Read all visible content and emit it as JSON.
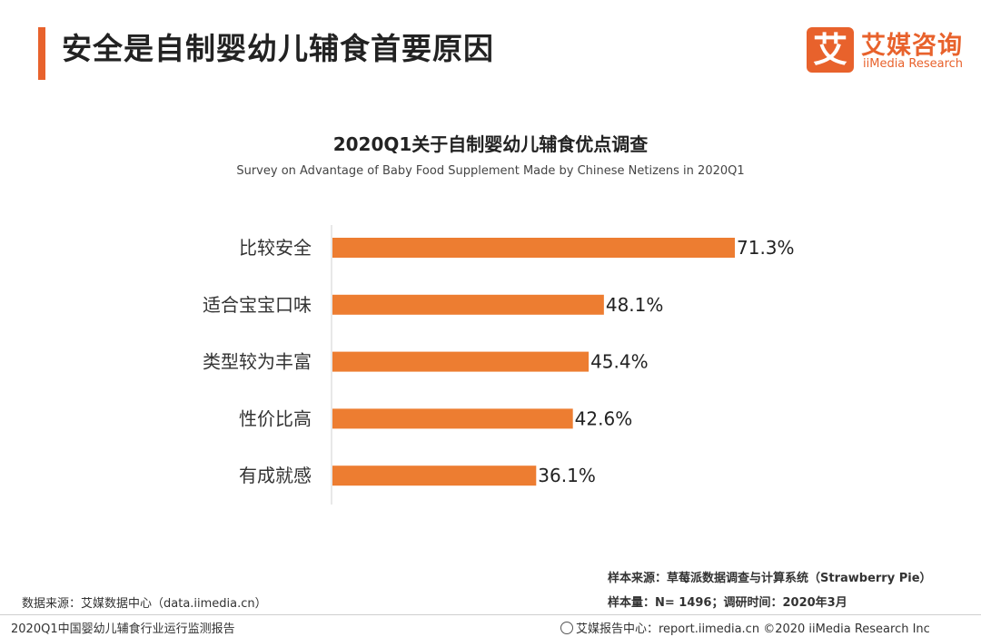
{
  "header": {
    "page_title": "安全是自制婴幼儿辅食首要原因",
    "logo_mark": "艾",
    "logo_cn": "艾媒咨询",
    "logo_en": "iiMedia Research",
    "accent_color": "#e8622c"
  },
  "chart_data": {
    "type": "bar",
    "orientation": "horizontal",
    "title": "2020Q1关于自制婴幼儿辅食优点调查",
    "subtitle": "Survey on Advantage of Baby Food Supplement Made by Chinese Netizens in 2020Q1",
    "categories": [
      "比较安全",
      "适合宝宝口味",
      "类型较为丰富",
      "性价比高",
      "有成就感"
    ],
    "values": [
      71.3,
      48.1,
      45.4,
      42.6,
      36.1
    ],
    "value_labels": [
      "71.3%",
      "48.1%",
      "45.4%",
      "42.6%",
      "36.1%"
    ],
    "unit": "%",
    "xlim": [
      0,
      100
    ],
    "bar_color": "#ed7d31",
    "grid": false,
    "legend": "none"
  },
  "footer": {
    "source_left": "数据来源：艾媒数据中心（data.iimedia.cn）",
    "sample_source": "样本来源：草莓派数据调查与计算系统（Strawberry   Pie）",
    "sample_size": "样本量：N= 1496；调研时间：2020年3月",
    "report_name": "2020Q1中国婴幼儿辅食行业运行监测报告",
    "report_center": "艾媒报告中心：report.iimedia.cn  ©2020  iiMedia Research  Inc"
  }
}
